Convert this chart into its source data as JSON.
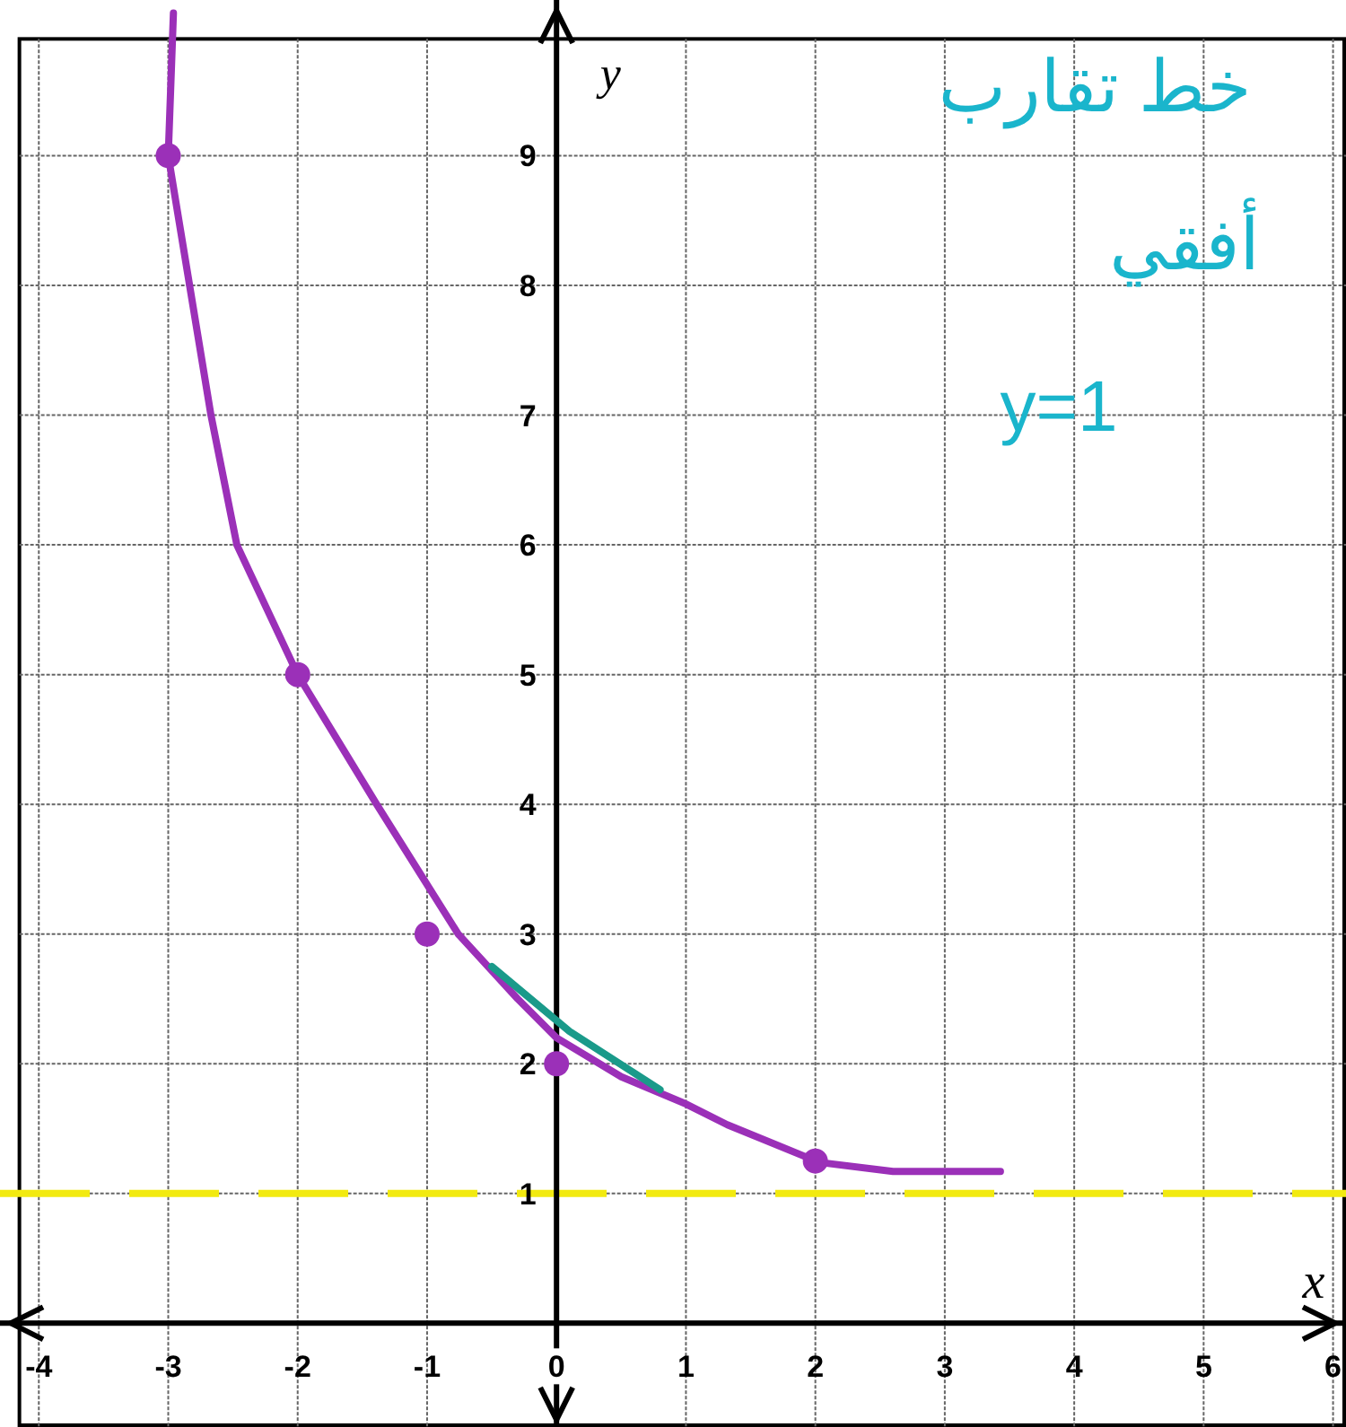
{
  "chart_data": {
    "type": "line",
    "xlabel": "x",
    "ylabel": "y",
    "xlim": [
      -4.3,
      6.1
    ],
    "ylim": [
      -0.8,
      10.2
    ],
    "xticks": [
      -4,
      -3,
      -2,
      -1,
      0,
      1,
      2,
      3,
      4,
      5,
      6
    ],
    "yticks": [
      1,
      2,
      3,
      4,
      5,
      6,
      7,
      8,
      9
    ],
    "grid": true,
    "series": [
      {
        "type": "line",
        "color": "#9b30b8",
        "marker": "none",
        "x": [
          -2.96,
          -3.0,
          -2.67,
          -2.47,
          -2.0,
          -1.39,
          -0.76,
          -0.3,
          0,
          0.5,
          1.0,
          1.32,
          2.03,
          2.6,
          3.43
        ],
        "values": [
          10.1,
          9,
          7,
          6,
          5,
          4,
          3,
          2.5,
          2.2,
          1.9,
          1.69,
          1.53,
          1.24,
          1.17,
          1.17
        ]
      },
      {
        "type": "scatter",
        "color": "#9b30b8",
        "marker": "circle",
        "x": [
          -3,
          -2,
          -1,
          0,
          2
        ],
        "values": [
          9,
          5,
          3,
          2,
          1.25
        ]
      },
      {
        "type": "line",
        "color": "#1a9a8a",
        "marker": "none",
        "x": [
          -0.5,
          0.1,
          0.8
        ],
        "values": [
          2.75,
          2.25,
          1.8
        ]
      }
    ],
    "ref_lines": [
      {
        "axis": "y",
        "value": 1,
        "color": "#f2ea10",
        "line_style": "dashed"
      }
    ],
    "annotations": [
      "خط تقارب",
      "أفقي",
      "y=1"
    ]
  }
}
